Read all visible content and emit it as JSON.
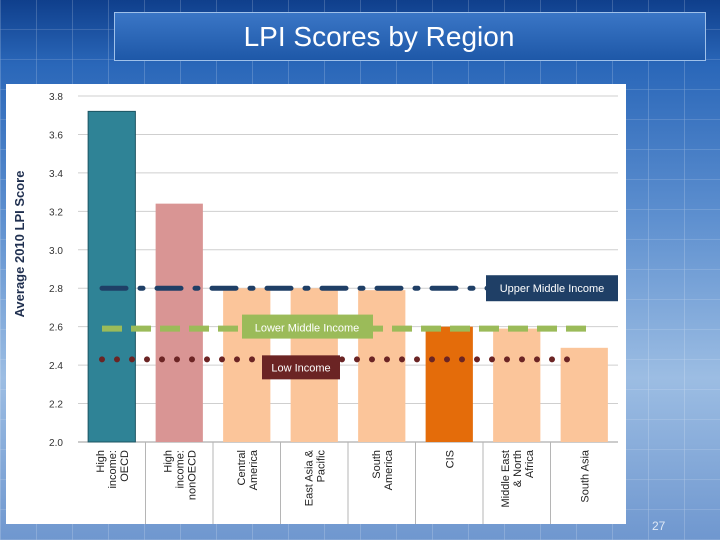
{
  "slide": {
    "title": "LPI Scores by Region",
    "page_number": "27"
  },
  "colors": {
    "oecd": "#2f8396",
    "non_oecd": "#d99594",
    "region": "#fbc59a",
    "cis": "#e46c0a",
    "upper_line": "#1f3f66",
    "lower_line": "#9bbb59",
    "low_line": "#6b2424",
    "upper_label_bg": "#1f3f66",
    "lower_label_bg": "#9bbb59",
    "low_label_bg": "#6b2424"
  },
  "chart_data": {
    "type": "bar",
    "title": "",
    "xlabel": "",
    "ylabel": "Average 2010 LPI Score",
    "ylim": [
      2.0,
      3.8
    ],
    "yticks": [
      "2.0",
      "2.2",
      "2.4",
      "2.6",
      "2.8",
      "3.0",
      "3.2",
      "3.4",
      "3.6",
      "3.8"
    ],
    "grid": true,
    "categories": [
      [
        "High",
        "income:",
        "OECD"
      ],
      [
        "High",
        "income:",
        "nonOECD"
      ],
      [
        "Central",
        "America"
      ],
      [
        "East Asia &",
        "Pacific"
      ],
      [
        "South",
        "America"
      ],
      [
        "CIS"
      ],
      [
        "Middle East",
        "& North",
        "Africa"
      ],
      [
        "South Asia"
      ]
    ],
    "values": [
      3.72,
      3.24,
      2.8,
      2.8,
      2.79,
      2.6,
      2.59,
      2.49
    ],
    "bar_color_keys": [
      "oecd",
      "non_oecd",
      "region",
      "region",
      "region",
      "cis",
      "region",
      "region"
    ],
    "reference_lines": [
      {
        "name": "Upper Middle Income",
        "value": 2.8,
        "style": "dash-dot",
        "color_key": "upper_line"
      },
      {
        "name": "Lower Middle Income",
        "value": 2.59,
        "style": "dash",
        "color_key": "lower_line"
      },
      {
        "name": "Low Income",
        "value": 2.43,
        "style": "dot",
        "color_key": "low_line"
      }
    ]
  }
}
